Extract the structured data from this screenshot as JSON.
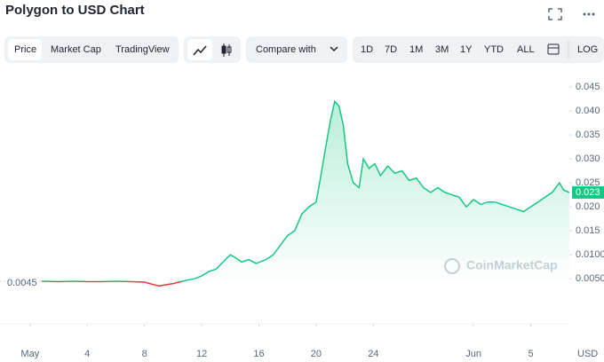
{
  "header": {
    "title": "Polygon to USD Chart"
  },
  "toolbar": {
    "tabs": [
      "Price",
      "Market Cap",
      "TradingView"
    ],
    "compare": "Compare with",
    "ranges": [
      "1D",
      "7D",
      "1M",
      "3M",
      "1Y",
      "YTD",
      "ALL"
    ],
    "log": "LOG"
  },
  "chart_data": {
    "type": "line",
    "x": [
      0.8,
      2,
      3,
      4,
      5,
      6,
      7,
      8,
      9,
      10,
      10.8,
      11.5,
      12,
      12.5,
      13,
      13.5,
      14,
      14.3,
      14.8,
      15.3,
      15.8,
      16.5,
      17,
      17.5,
      18,
      18.5,
      19,
      19.5,
      20,
      20.3,
      20.7,
      21,
      21.3,
      21.6,
      21.9,
      22.2,
      22.6,
      23,
      23.3,
      23.7,
      24.1,
      24.5,
      25,
      25.5,
      26,
      26.5,
      27,
      27.5,
      28,
      28.5,
      29,
      30,
      30.5,
      31,
      31.5,
      32,
      32.5,
      33,
      34,
      34.5,
      35,
      35.5,
      36,
      36.5,
      37,
      37.3,
      37.7
    ],
    "series": [
      {
        "color": "#16c784",
        "values": [
          0.0045,
          0.0044,
          0.0045,
          0.0044,
          0.0044,
          0.0045,
          0.0044,
          0.0043,
          0.0035,
          0.004,
          0.0046,
          0.005,
          0.0056,
          0.0065,
          0.007,
          0.0085,
          0.01,
          0.0095,
          0.0085,
          0.009,
          0.0082,
          0.009,
          0.01,
          0.012,
          0.014,
          0.015,
          0.0185,
          0.02,
          0.021,
          0.026,
          0.033,
          0.038,
          0.042,
          0.041,
          0.037,
          0.029,
          0.025,
          0.024,
          0.03,
          0.028,
          0.029,
          0.0265,
          0.0285,
          0.027,
          0.0275,
          0.0255,
          0.026,
          0.024,
          0.023,
          0.024,
          0.023,
          0.022,
          0.02,
          0.0215,
          0.0205,
          0.021,
          0.021,
          0.0205,
          0.0195,
          0.019,
          0.02,
          0.021,
          0.022,
          0.023,
          0.025,
          0.0235,
          0.023
        ]
      }
    ],
    "below_color": "#ea3943",
    "reference": {
      "value": 0.0045,
      "label": "0.0045"
    },
    "current_price": 0.023,
    "watermark": "CoinMarketCap",
    "unit": "USD",
    "xlim": [
      -2.1,
      37.7
    ],
    "xticks": [
      {
        "value": 0,
        "label": "May"
      },
      4,
      8,
      12,
      16,
      20,
      24,
      {
        "value": 31,
        "label": "Jun"
      },
      {
        "value": 35,
        "label": "5"
      }
    ],
    "ylim": [
      -0.0044,
      0.0474
    ],
    "yticks": [
      {
        "value": 0.005,
        "label": "0.0050"
      },
      {
        "value": 0.01,
        "label": "0.0100"
      },
      0.015,
      {
        "value": 0.02,
        "label": "0.020"
      },
      0.025,
      {
        "value": 0.03,
        "label": "0.030"
      },
      0.035,
      {
        "value": 0.04,
        "label": "0.040"
      },
      0.045
    ],
    "grid": false
  }
}
